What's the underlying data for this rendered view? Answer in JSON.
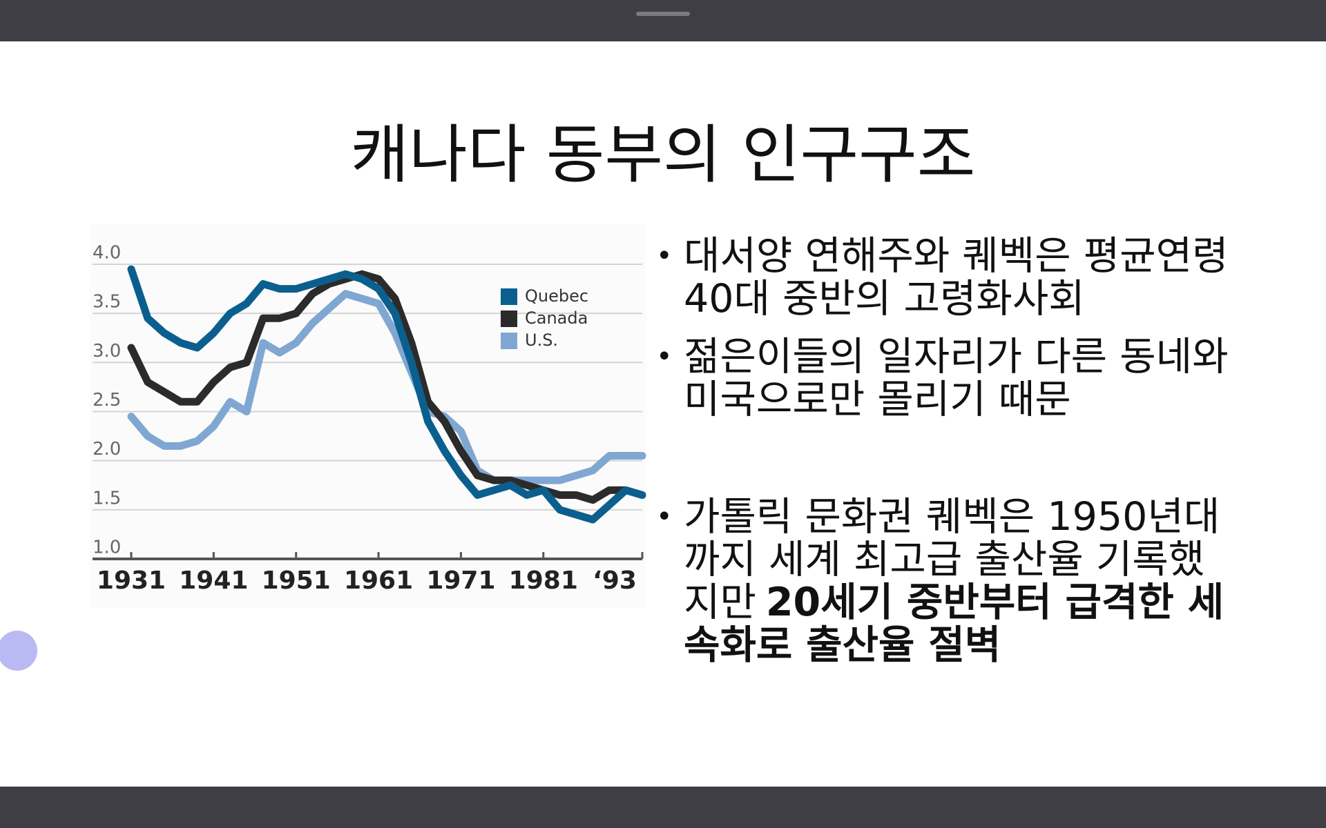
{
  "slide": {
    "title": "캐나다 동부의 인구구조",
    "bullets": [
      {
        "text": "대서양 연해주와 퀘벡은 평균연령 40대 중반의 고령화사회"
      },
      {
        "text": "젊은이들의 일자리가 다른 동네와 미국으로만 몰리기 때문"
      },
      {
        "text": "가톨릭 문화권 퀘벡은 1950년대까지 세계 최고급 출산율 기록했지만",
        "bold": "20세기 중반부터 급격한 세속화로 출산율 절벽"
      }
    ]
  },
  "chart_data": {
    "type": "line",
    "x": [
      1931,
      1933,
      1935,
      1937,
      1939,
      1941,
      1943,
      1945,
      1947,
      1949,
      1951,
      1953,
      1955,
      1957,
      1959,
      1961,
      1963,
      1965,
      1967,
      1969,
      1971,
      1973,
      1975,
      1977,
      1979,
      1981,
      1983,
      1985,
      1987,
      1989,
      1991,
      1993
    ],
    "series": [
      {
        "name": "Quebec",
        "color": "#0b5f8e",
        "values": [
          3.95,
          3.45,
          3.3,
          3.2,
          3.15,
          3.3,
          3.5,
          3.6,
          3.8,
          3.75,
          3.75,
          3.8,
          3.85,
          3.9,
          3.85,
          3.75,
          3.5,
          3.0,
          2.4,
          2.1,
          1.85,
          1.65,
          1.7,
          1.75,
          1.65,
          1.7,
          1.5,
          1.45,
          1.4,
          1.55,
          1.7,
          1.65
        ]
      },
      {
        "name": "Canada",
        "color": "#2b2b2b",
        "values": [
          3.15,
          2.8,
          2.7,
          2.6,
          2.6,
          2.8,
          2.95,
          3.0,
          3.45,
          3.45,
          3.5,
          3.7,
          3.8,
          3.85,
          3.9,
          3.85,
          3.65,
          3.2,
          2.6,
          2.4,
          2.1,
          1.85,
          1.8,
          1.8,
          1.75,
          1.7,
          1.65,
          1.65,
          1.6,
          1.7,
          1.7,
          1.65
        ]
      },
      {
        "name": "U.S.",
        "color": "#7fa7d2",
        "values": [
          2.45,
          2.25,
          2.15,
          2.15,
          2.2,
          2.35,
          2.6,
          2.5,
          3.2,
          3.1,
          3.2,
          3.4,
          3.55,
          3.7,
          3.65,
          3.6,
          3.3,
          2.9,
          2.5,
          2.45,
          2.3,
          1.9,
          1.8,
          1.8,
          1.8,
          1.8,
          1.8,
          1.85,
          1.9,
          2.05,
          2.05,
          2.05
        ]
      }
    ],
    "xlim": [
      1931,
      1993
    ],
    "xticks": [
      1931,
      1941,
      1951,
      1961,
      1971,
      1981,
      {
        "value": 1993,
        "label": "‘93"
      }
    ],
    "ylim": [
      1,
      4
    ],
    "yticks": [
      {
        "value": 1,
        "label": "1.0"
      },
      1.5,
      {
        "value": 2,
        "label": "2.0"
      },
      2.5,
      {
        "value": 3,
        "label": "3.0"
      },
      3.5,
      {
        "value": 4,
        "label": "4.0"
      }
    ],
    "grid": true
  }
}
